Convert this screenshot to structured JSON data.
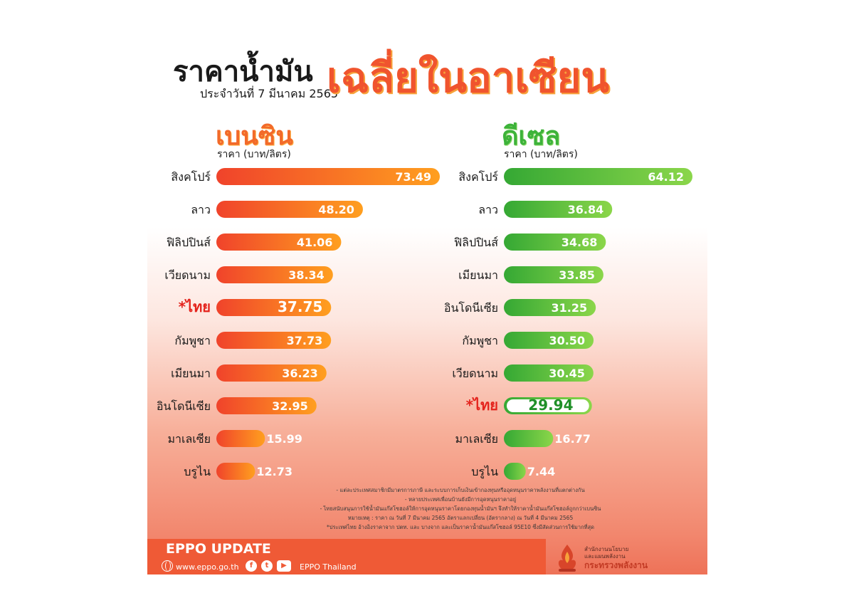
{
  "header": {
    "title_main": "ราคาน้ำมัน",
    "title_accent": "เฉลี่ยในอาเซียน",
    "date": "ประจำวันที่ 7 มีนาคม 2565"
  },
  "colors": {
    "benzine_bar_start": "#f0432b",
    "benzine_bar_end": "#ff9f1f",
    "diesel_bar_start": "#35a834",
    "diesel_bar_end": "#8bd64a",
    "highlight_red": "#e4231c",
    "footer_orange": "#ef5a36"
  },
  "chart_data": [
    {
      "type": "bar",
      "orientation": "horizontal",
      "title": "เบนซิน",
      "unit": "ราคา (บาท/ลิตร)",
      "categories": [
        "สิงคโปร์",
        "ลาว",
        "ฟิลิปปินส์",
        "เวียดนาม",
        "*ไทย",
        "กัมพูชา",
        "เมียนมา",
        "อินโดนีเซีย",
        "มาเลเซีย",
        "บรูไน"
      ],
      "values": [
        73.49,
        48.2,
        41.06,
        38.34,
        37.75,
        37.73,
        36.23,
        32.95,
        15.99,
        12.73
      ],
      "labels": [
        "73.49",
        "48.20",
        "41.06",
        "38.34",
        "37.75",
        "37.73",
        "36.23",
        "32.95",
        "15.99",
        "12.73"
      ],
      "highlight_index": 4
    },
    {
      "type": "bar",
      "orientation": "horizontal",
      "title": "ดีเซล",
      "unit": "ราคา (บาท/ลิตร)",
      "categories": [
        "สิงคโปร์",
        "ลาว",
        "ฟิลิปปินส์",
        "เมียนมา",
        "อินโดนีเซีย",
        "กัมพูชา",
        "เวียดนาม",
        "*ไทย",
        "มาเลเซีย",
        "บรูไน"
      ],
      "values": [
        64.12,
        36.84,
        34.68,
        33.85,
        31.25,
        30.5,
        30.45,
        29.94,
        16.77,
        7.44
      ],
      "labels": [
        "64.12",
        "36.84",
        "34.68",
        "33.85",
        "31.25",
        "30.50",
        "30.45",
        "29.94",
        "16.77",
        "7.44"
      ],
      "highlight_index": 7
    }
  ],
  "notes": [
    "- แต่ละประเทศสมาชิกมีมาตรการภาษี และระบบการเก็บเงินเข้ากองทุนหรืออุดหนุนราคาพลังงานที่แตกต่างกัน",
    "- หลายประเทศเพื่อนบ้านยังมีการอุดหนุนราคาอยู่",
    "- ไทยสนับสนุนการใช้น้ำมันแก๊สโซฮอล์ให้การอุดหนุนราคาโดยกองทุนน้ำมันฯ จึงทำให้ราคาน้ำมันแก๊สโซฮอล์ถูกกว่าเบนซิน",
    "หมายเหตุ : ราคา ณ วันที่ 7 มีนาคม 2565 อัตราแลกเปลี่ยน (อัตรากลาง) ณ วันที่ 4 มีนาคม 2565",
    "*ประเทศไทย อ้างอิงราคาจาก ปตท. และ บางจาก และเป็นราคาน้ำมันแก๊สโซฮอล์ 95E10 ซึ่งมีสัดส่วนการใช้มากที่สุด"
  ],
  "footer": {
    "title": "EPPO UPDATE",
    "url": "www.eppo.go.th",
    "social_label": "EPPO Thailand",
    "icons": [
      "globe-icon",
      "facebook-icon",
      "twitter-icon",
      "youtube-icon"
    ]
  },
  "logo": {
    "line1": "สำนักงานนโยบาย",
    "line2": "และแผนพลังงาน",
    "line3": "กระทรวงพลังงาน"
  }
}
